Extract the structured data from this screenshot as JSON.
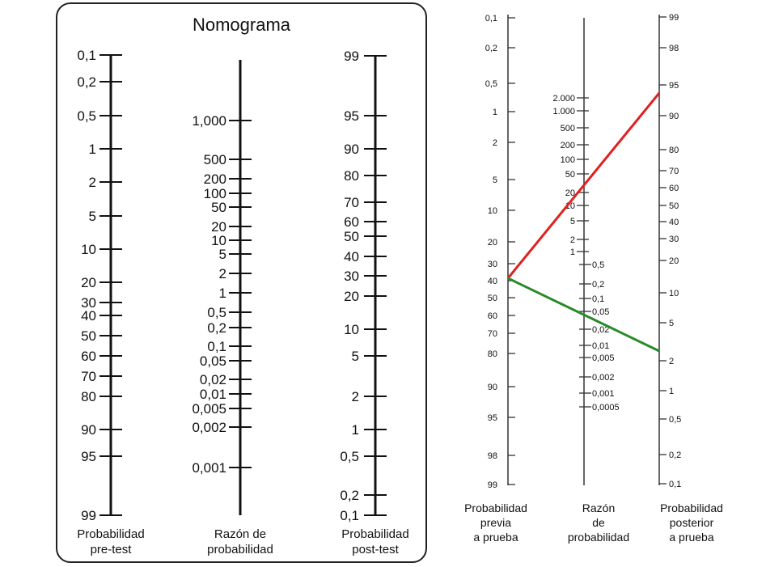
{
  "left": {
    "title": "Nomograma",
    "scales": [
      {
        "id": "pretest",
        "caption": [
          "Probabilidad",
          "pre-test"
        ],
        "ticks": [
          "0,1",
          "0,2",
          "0,5",
          "1",
          "2",
          "5",
          "10",
          "20",
          "30",
          "40",
          "50",
          "60",
          "70",
          "80",
          "90",
          "95",
          "99"
        ]
      },
      {
        "id": "lr",
        "caption": [
          "Razón de",
          "probabilidad"
        ],
        "ticks": [
          "1,000",
          "500",
          "200",
          "100",
          "50",
          "20",
          "10",
          "5",
          "2",
          "1",
          "0,5",
          "0,2",
          "0,1",
          "0,05",
          "0,02",
          "0,01",
          "0,005",
          "0,002",
          "0,001"
        ]
      },
      {
        "id": "posttest",
        "caption": [
          "Probabilidad",
          "post-test"
        ],
        "ticks": [
          "99",
          "95",
          "90",
          "80",
          "70",
          "60",
          "50",
          "40",
          "30",
          "20",
          "10",
          "5",
          "2",
          "1",
          "0,5",
          "0,2",
          "0,1"
        ]
      }
    ]
  },
  "right": {
    "scales": [
      {
        "id": "previa",
        "caption": [
          "Probabilidad",
          "previa",
          "a prueba"
        ],
        "ticks": [
          "0,1",
          "0,2",
          "0,5",
          "1",
          "2",
          "5",
          "10",
          "20",
          "30",
          "40",
          "50",
          "60",
          "70",
          "80",
          "90",
          "95",
          "98",
          "99"
        ]
      },
      {
        "id": "razon",
        "caption": [
          "Razón",
          "de",
          "probabilidad"
        ],
        "ticks_left": [
          "2.000",
          "1.000",
          "500",
          "200",
          "100",
          "50",
          "20",
          "10",
          "5",
          "2",
          "1"
        ],
        "ticks_right": [
          "0,5",
          "0,2",
          "0,1",
          "0,05",
          "0,02",
          "0,01",
          "0,005",
          "0,002",
          "0,001",
          "0,0005"
        ]
      },
      {
        "id": "posterior",
        "caption": [
          "Probabilidad",
          "posterior",
          "a prueba"
        ],
        "ticks": [
          "99",
          "98",
          "95",
          "90",
          "80",
          "70",
          "60",
          "50",
          "40",
          "30",
          "20",
          "10",
          "5",
          "2",
          "1",
          "0,5",
          "0,2",
          "0,1"
        ]
      }
    ],
    "lines": [
      {
        "name": "red-line",
        "color": "#e02020",
        "from": "40",
        "to": "92"
      },
      {
        "name": "green-line",
        "color": "#2a8a2a",
        "from": "40",
        "to": "2,5"
      }
    ]
  }
}
